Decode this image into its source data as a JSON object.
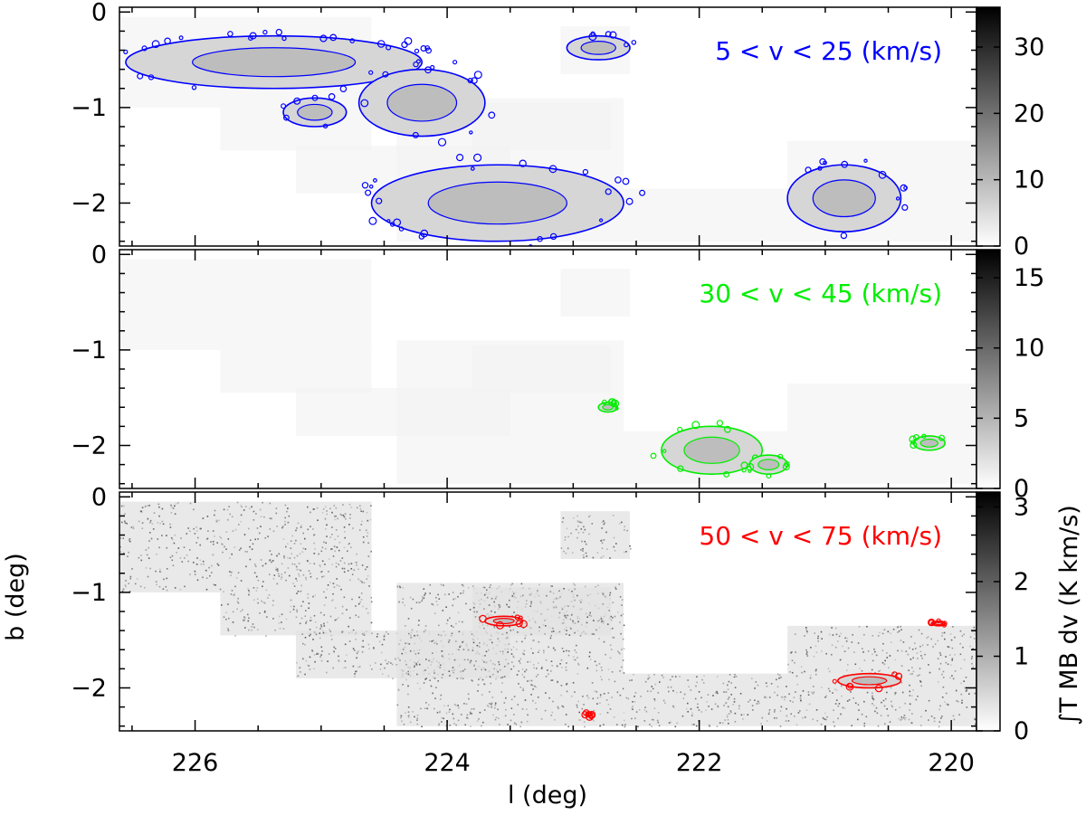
{
  "chart_data": {
    "type": "heatmap",
    "x_axis": {
      "label": "l (deg)",
      "range": [
        226.6,
        219.8
      ],
      "ticks": [
        "226",
        "224",
        "222",
        "220"
      ],
      "tick_values": [
        226,
        224,
        222,
        220
      ]
    },
    "y_axis": {
      "label": "b (deg)",
      "range": [
        -2.45,
        0.05
      ],
      "ticks": [
        "0",
        "−1",
        "−2"
      ],
      "tick_values": [
        0,
        -1,
        -2
      ]
    },
    "colorbar_label": "∫T MB dv (K km/s)",
    "panels": [
      {
        "annotation": "5 < v < 25 (km/s)",
        "contour_color": "#0000ff",
        "colorbar": {
          "range": [
            0,
            36
          ],
          "ticks": [
            "0",
            "10",
            "20",
            "30"
          ],
          "tick_values": [
            0,
            10,
            20,
            30
          ]
        },
        "emission_regions": [
          {
            "l": [
              226.55,
              224.2
            ],
            "b": [
              -0.8,
              -0.25
            ]
          },
          {
            "l": [
              224.7,
              223.7
            ],
            "b": [
              -1.3,
              -0.6
            ]
          },
          {
            "l": [
              225.3,
              224.8
            ],
            "b": [
              -1.2,
              -0.9
            ]
          },
          {
            "l": [
              224.6,
              222.6
            ],
            "b": [
              -2.4,
              -1.6
            ]
          },
          {
            "l": [
              221.3,
              220.4
            ],
            "b": [
              -2.3,
              -1.6
            ]
          },
          {
            "l": [
              223.05,
              222.55
            ],
            "b": [
              -0.5,
              -0.25
            ]
          }
        ]
      },
      {
        "annotation": "30 < v < 45 (km/s)",
        "contour_color": "#00ee00",
        "colorbar": {
          "range": [
            0,
            17
          ],
          "ticks": [
            "0",
            "5",
            "10",
            "15"
          ],
          "tick_values": [
            0,
            5,
            10,
            15
          ]
        },
        "emission_regions": [
          {
            "l": [
              222.3,
              221.5
            ],
            "b": [
              -2.3,
              -1.8
            ]
          },
          {
            "l": [
              221.6,
              221.3
            ],
            "b": [
              -2.3,
              -2.1
            ]
          },
          {
            "l": [
              222.8,
              222.65
            ],
            "b": [
              -1.65,
              -1.55
            ]
          },
          {
            "l": [
              220.3,
              220.05
            ],
            "b": [
              -2.05,
              -1.9
            ]
          }
        ]
      },
      {
        "annotation": "50 < v < 75 (km/s)",
        "contour_color": "#ff0000",
        "colorbar": {
          "range": [
            0,
            3.2
          ],
          "ticks": [
            "0",
            "1",
            "2",
            "3"
          ],
          "tick_values": [
            0,
            1,
            2,
            3
          ]
        },
        "emission_regions": [
          {
            "l": [
              223.7,
              223.4
            ],
            "b": [
              -1.35,
              -1.25
            ]
          },
          {
            "l": [
              222.9,
              222.85
            ],
            "b": [
              -2.3,
              -2.25
            ]
          },
          {
            "l": [
              220.9,
              220.4
            ],
            "b": [
              -2.0,
              -1.85
            ]
          },
          {
            "l": [
              220.15,
              220.05
            ],
            "b": [
              -1.35,
              -1.3
            ]
          }
        ]
      }
    ],
    "coverage_tiles": [
      {
        "l": [
          226.6,
          224.6
        ],
        "b": [
          -1.0,
          -0.05
        ]
      },
      {
        "l": [
          225.8,
          224.6
        ],
        "b": [
          -1.45,
          -1.0
        ]
      },
      {
        "l": [
          225.2,
          223.5
        ],
        "b": [
          -1.9,
          -1.4
        ]
      },
      {
        "l": [
          224.4,
          222.6
        ],
        "b": [
          -2.4,
          -0.9
        ]
      },
      {
        "l": [
          223.8,
          222.7
        ],
        "b": [
          -1.45,
          -0.95
        ]
      },
      {
        "l": [
          223.1,
          222.55
        ],
        "b": [
          -0.65,
          -0.15
        ]
      },
      {
        "l": [
          222.6,
          219.8
        ],
        "b": [
          -2.4,
          -1.85
        ]
      },
      {
        "l": [
          221.3,
          219.8
        ],
        "b": [
          -1.85,
          -1.35
        ]
      }
    ]
  }
}
